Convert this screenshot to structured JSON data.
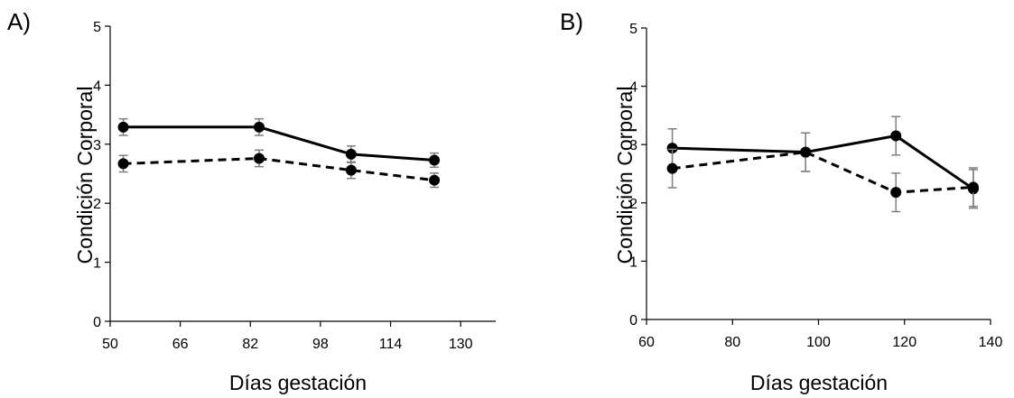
{
  "chart_data": [
    {
      "panel_label": "A)",
      "type": "line",
      "xlabel": "Días gestación",
      "ylabel": "Condición Corporal",
      "xlim": [
        50,
        138
      ],
      "ylim": [
        0,
        5
      ],
      "xticks": [
        50,
        66,
        82,
        98,
        114,
        130
      ],
      "yticks": [
        0,
        1,
        2,
        3,
        4,
        5
      ],
      "grid": false,
      "series": [
        {
          "line_style": "solid",
          "marker": "circle",
          "color": "#000000",
          "x": [
            53,
            84,
            105,
            124
          ],
          "y": [
            3.29,
            3.29,
            2.83,
            2.73
          ],
          "error": [
            0.14,
            0.14,
            0.14,
            0.12
          ]
        },
        {
          "line_style": "dashed",
          "marker": "circle",
          "color": "#000000",
          "x": [
            53,
            84,
            105,
            124
          ],
          "y": [
            2.67,
            2.76,
            2.56,
            2.39
          ],
          "error": [
            0.14,
            0.14,
            0.14,
            0.12
          ]
        }
      ]
    },
    {
      "panel_label": "B)",
      "type": "line",
      "xlabel": "Días gestación",
      "ylabel": "Condición Corporal",
      "xlim": [
        60,
        140
      ],
      "ylim": [
        0,
        5
      ],
      "xticks": [
        60,
        80,
        100,
        120,
        140
      ],
      "yticks": [
        0,
        1,
        2,
        3,
        4,
        5
      ],
      "grid": false,
      "series": [
        {
          "line_style": "solid",
          "marker": "circle",
          "color": "#000000",
          "x": [
            66,
            97,
            118,
            136
          ],
          "y": [
            2.94,
            2.87,
            3.15,
            2.24
          ],
          "error": [
            0.33,
            0.33,
            0.33,
            0.33
          ]
        },
        {
          "line_style": "dashed",
          "marker": "circle",
          "color": "#000000",
          "x": [
            66,
            97,
            118,
            136
          ],
          "y": [
            2.59,
            2.87,
            2.18,
            2.27
          ],
          "error": [
            0.33,
            0.33,
            0.33,
            0.33
          ]
        }
      ]
    }
  ],
  "colors": {
    "line": "#000000",
    "errorbar": "#7f7f7f",
    "axis": "#000000"
  }
}
